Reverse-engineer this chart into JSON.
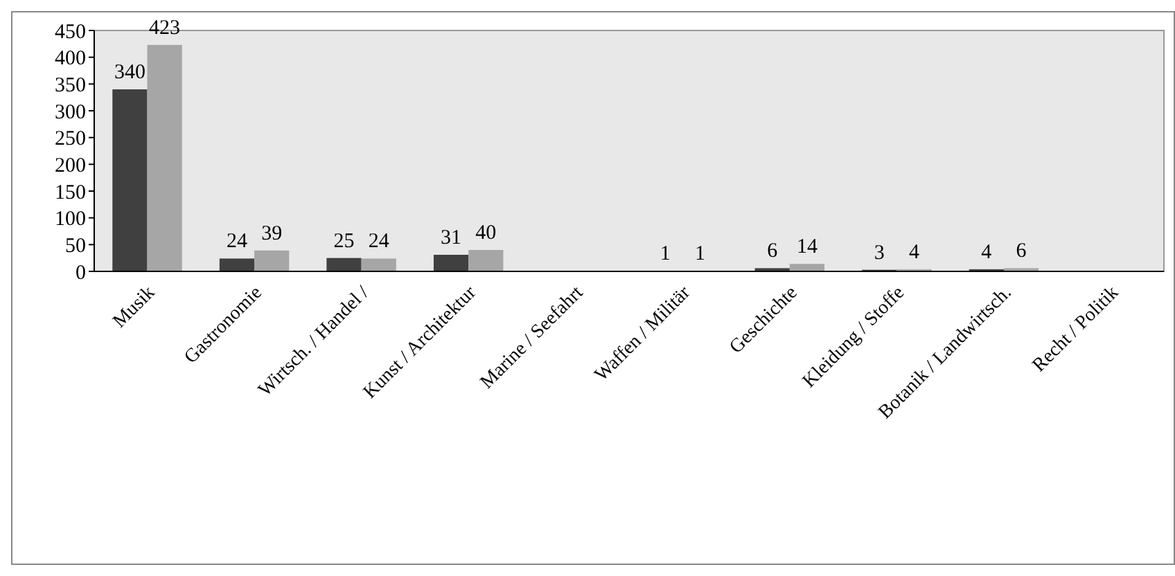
{
  "chart_data": {
    "type": "bar",
    "categories": [
      "Musik",
      "Gastronomie",
      "Wirtsch. / Handel /",
      "Kunst / Architektur",
      "Marine / Seefahrt",
      "Waffen / Militär",
      "Geschichte",
      "Kleidung / Stoffe",
      "Botanik / Landwirtsch.",
      "Recht / Politik"
    ],
    "series": [
      {
        "color": "#404040",
        "values": [
          340,
          24,
          25,
          31,
          null,
          1,
          6,
          3,
          4,
          null
        ]
      },
      {
        "color": "#a6a6a6",
        "values": [
          423,
          39,
          24,
          40,
          null,
          1,
          14,
          4,
          6,
          null
        ]
      }
    ],
    "ylim": [
      0,
      450
    ],
    "yticks": [
      0,
      50,
      100,
      150,
      200,
      250,
      300,
      350,
      400,
      450
    ],
    "data_labels": true
  }
}
